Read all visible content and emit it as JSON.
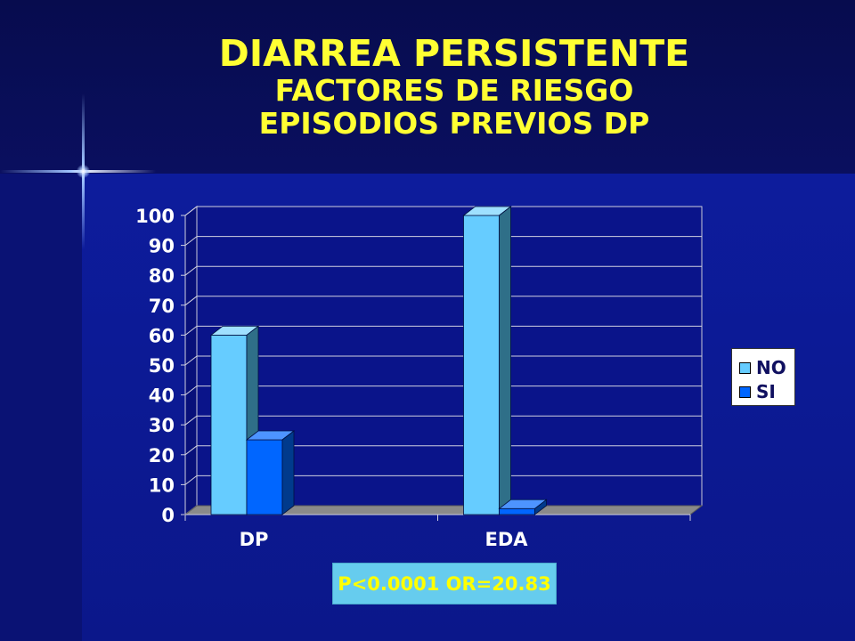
{
  "slide": {
    "title": "DIARREA PERSISTENTE",
    "subtitle1": "FACTORES DE RIESGO",
    "subtitle2": "EPISODIOS PREVIOS DP",
    "stat_note": "P<0.0001 OR=20.83"
  },
  "colors": {
    "background": "#0b178a",
    "title_text": "#ffff33",
    "series_no": "#66ccff",
    "series_si": "#0066ff",
    "stat_box": "#66ccee"
  },
  "chart_data": {
    "type": "bar",
    "categories": [
      "DP",
      "EDA"
    ],
    "series": [
      {
        "name": "NO",
        "values": [
          60,
          100
        ]
      },
      {
        "name": "SI",
        "values": [
          25,
          2
        ]
      }
    ],
    "ylim": [
      0,
      100
    ],
    "yticks": [
      0,
      10,
      20,
      30,
      40,
      50,
      60,
      70,
      80,
      90,
      100
    ],
    "grid": true,
    "legend_position": "right",
    "three_d": true
  }
}
